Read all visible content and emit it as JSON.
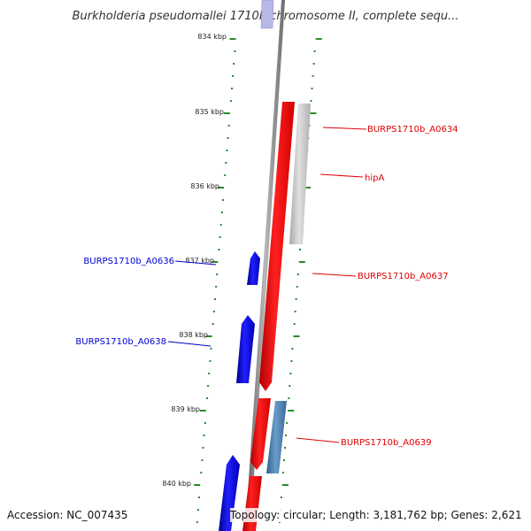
{
  "title": "Burkholderia pseudomallei 1710b chromosome II, complete sequ...",
  "ticks": [
    "834 kbp",
    "835 kbp",
    "836 kbp",
    "837 kbp",
    "838 kbp",
    "839 kbp",
    "840 kbp"
  ],
  "genes": [
    {
      "label": "BURPS1710b_A0634",
      "strand": "forward",
      "color": "#e00000"
    },
    {
      "label": "hipA",
      "strand": "forward",
      "color": "#e00000"
    },
    {
      "label": "BURPS1710b_A0636",
      "strand": "reverse",
      "color": "#0000cc"
    },
    {
      "label": "BURPS1710b_A0637",
      "strand": "forward",
      "color": "#e00000"
    },
    {
      "label": "BURPS1710b_A0638",
      "strand": "reverse",
      "color": "#0000cc"
    },
    {
      "label": "BURPS1710b_A0639",
      "strand": "forward",
      "color": "#e00000"
    }
  ],
  "footer": {
    "accession": "Accession: NC_007435",
    "topology": "Topology: circular; Length: 3,181,762 bp; Genes: 2,621"
  },
  "colors": {
    "forward": "#e00000",
    "reverse": "#0000cc",
    "backbone": "#888888",
    "ticks": "#2a8a2a",
    "other_gene_gray": "#c0c0c0",
    "other_gene_steel": "#4a7fb0"
  }
}
